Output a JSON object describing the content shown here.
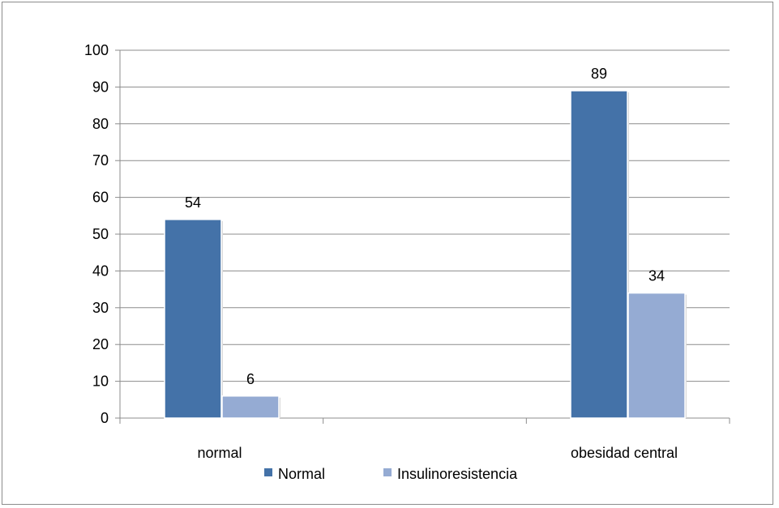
{
  "chart_data": {
    "type": "bar",
    "title": "",
    "xlabel": "",
    "ylabel": "",
    "categories": [
      "normal",
      "obesidad central"
    ],
    "series": [
      {
        "name": "Normal",
        "values": [
          54,
          89
        ],
        "color": "#4472a8"
      },
      {
        "name": "Insulinoresistencia",
        "values": [
          6,
          34
        ],
        "color": "#95abd3"
      }
    ],
    "ylim": [
      0,
      100
    ],
    "yticks": [
      0,
      10,
      20,
      30,
      40,
      50,
      60,
      70,
      80,
      90,
      100
    ],
    "grid": true,
    "legend_position": "bottom",
    "data_labels": true
  }
}
